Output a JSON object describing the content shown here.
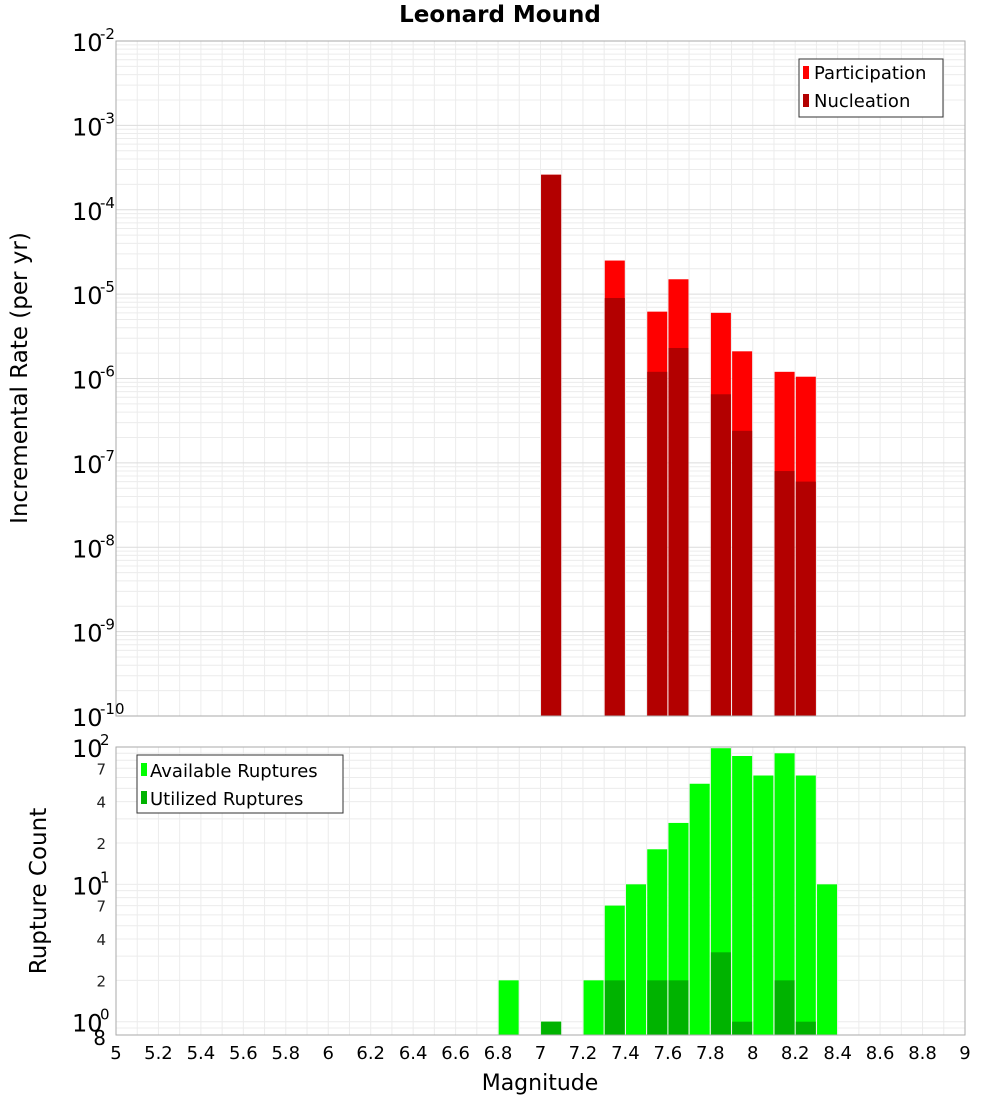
{
  "chart_data": [
    {
      "type": "bar",
      "title": "Leonard Mound",
      "ylabel": "Incremental Rate (per yr)",
      "xlabel": "",
      "yscale": "log",
      "ylim": [
        1e-10,
        0.01
      ],
      "xlim": [
        5,
        9
      ],
      "grid": true,
      "legend_position": "top-right",
      "x": [
        7.05,
        7.35,
        7.55,
        7.65,
        7.85,
        7.95,
        8.15,
        8.25
      ],
      "series": [
        {
          "name": "Participation",
          "color": "#ff0000",
          "values": [
            0.00026,
            2.5e-05,
            6.2e-06,
            1.5e-05,
            6e-06,
            2.1e-06,
            1.2e-06,
            1.05e-06
          ]
        },
        {
          "name": "Nucleation",
          "color": "#b30000",
          "values": [
            0.00026,
            9e-06,
            1.2e-06,
            2.3e-06,
            6.5e-07,
            2.4e-07,
            8e-08,
            6e-08
          ]
        }
      ],
      "y_ticks": [
        {
          "base": "10",
          "exp": "-10"
        },
        {
          "base": "10",
          "exp": "-9"
        },
        {
          "base": "10",
          "exp": "-8"
        },
        {
          "base": "10",
          "exp": "-7"
        },
        {
          "base": "10",
          "exp": "-6"
        },
        {
          "base": "10",
          "exp": "-5"
        },
        {
          "base": "10",
          "exp": "-4"
        },
        {
          "base": "10",
          "exp": "-3"
        },
        {
          "base": "10",
          "exp": "-2"
        }
      ]
    },
    {
      "type": "bar",
      "ylabel": "Rupture Count",
      "xlabel": "Magnitude",
      "yscale": "log",
      "ylim": [
        0.8,
        100
      ],
      "xlim": [
        5,
        9
      ],
      "grid": true,
      "legend_position": "top-left",
      "series": [
        {
          "name": "Available Ruptures",
          "color": "#00ff00",
          "x": [
            6.85,
            7.05,
            7.25,
            7.35,
            7.45,
            7.55,
            7.65,
            7.75,
            7.85,
            7.95,
            8.05,
            8.15,
            8.25,
            8.35
          ],
          "values": [
            2,
            1,
            2,
            7,
            10,
            18,
            28,
            54,
            98,
            86,
            62,
            90,
            62,
            10
          ]
        },
        {
          "name": "Utilized Ruptures",
          "color": "#00b300",
          "x": [
            7.05,
            7.35,
            7.55,
            7.65,
            7.85,
            7.95,
            8.15,
            8.25
          ],
          "values": [
            1,
            2,
            2,
            2,
            3.2,
            1,
            2,
            1
          ]
        }
      ],
      "y_major_ticks": [
        {
          "value": 1,
          "base": "10",
          "exp": "0"
        },
        {
          "value": 10,
          "base": "10",
          "exp": "1"
        },
        {
          "value": 100,
          "base": "10",
          "exp": "2"
        }
      ],
      "y_minor_ticks": [
        {
          "value": 0.8,
          "label": "8"
        },
        {
          "value": 2,
          "label": "2"
        },
        {
          "value": 4,
          "label": "4"
        },
        {
          "value": 7,
          "label": "7"
        },
        {
          "value": 20,
          "label": "2"
        },
        {
          "value": 40,
          "label": "4"
        },
        {
          "value": 70,
          "label": "7"
        }
      ],
      "x_ticks": [
        "5",
        "5.2",
        "5.4",
        "5.6",
        "5.8",
        "6",
        "6.2",
        "6.4",
        "6.6",
        "6.8",
        "7",
        "7.2",
        "7.4",
        "7.6",
        "7.8",
        "8",
        "8.2",
        "8.4",
        "8.6",
        "8.8",
        "9"
      ]
    }
  ]
}
